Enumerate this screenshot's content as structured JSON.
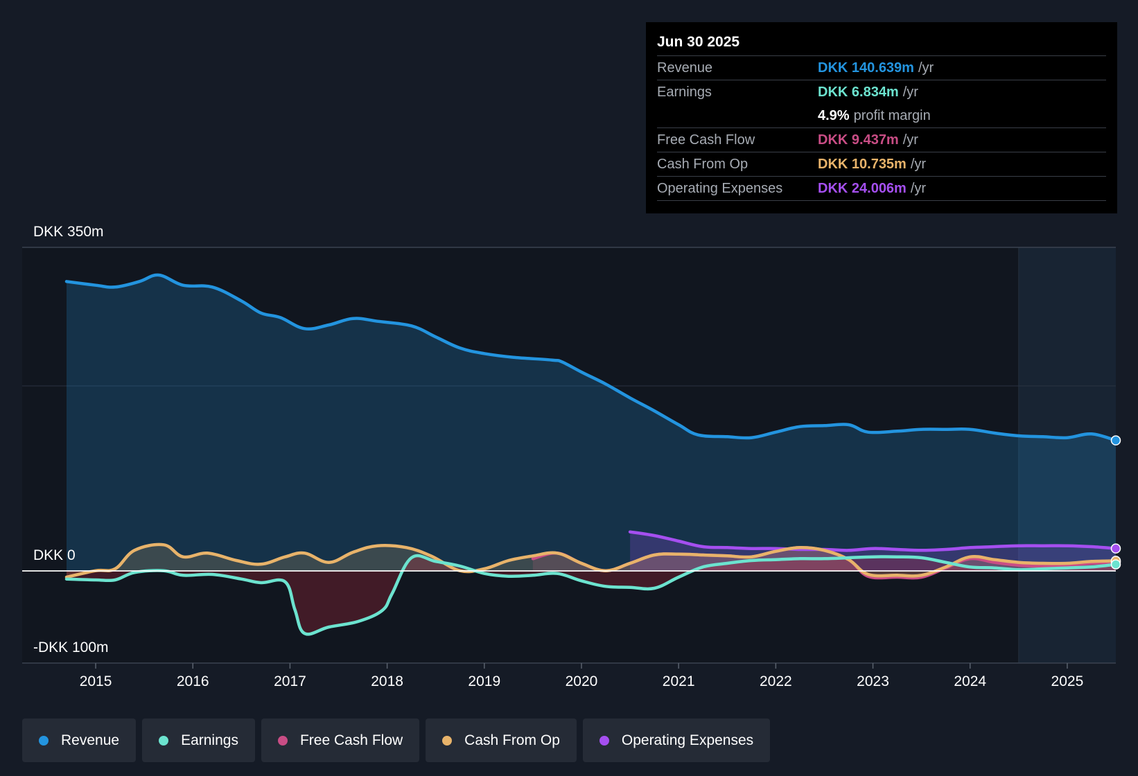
{
  "tooltip": {
    "date": "Jun 30 2025",
    "rows": [
      {
        "label": "Revenue",
        "value": "DKK 140.639m",
        "unit": "/yr",
        "color": "#2394df"
      },
      {
        "label": "Earnings",
        "value": "DKK 6.834m",
        "unit": "/yr",
        "color": "#6ce3cf"
      },
      {
        "label": "",
        "value": "4.9%",
        "unit": "profit margin",
        "color": "#ffffff"
      },
      {
        "label": "Free Cash Flow",
        "value": "DKK 9.437m",
        "unit": "/yr",
        "color": "#c94d85"
      },
      {
        "label": "Cash From Op",
        "value": "DKK 10.735m",
        "unit": "/yr",
        "color": "#e8b36a"
      },
      {
        "label": "Operating Expenses",
        "value": "DKK 24.006m",
        "unit": "/yr",
        "color": "#a54ff0"
      }
    ]
  },
  "legend": [
    {
      "label": "Revenue",
      "color": "#2394df"
    },
    {
      "label": "Earnings",
      "color": "#6ce3cf"
    },
    {
      "label": "Free Cash Flow",
      "color": "#c94d85"
    },
    {
      "label": "Cash From Op",
      "color": "#e8b36a"
    },
    {
      "label": "Operating Expenses",
      "color": "#a54ff0"
    }
  ],
  "chart_data": {
    "type": "area",
    "title": "",
    "xlabel": "",
    "ylabel": "",
    "y_labels": {
      "top": "DKK 350m",
      "zero": "DKK 0",
      "bottom": "-DKK 100m"
    },
    "ylim": [
      -100,
      350
    ],
    "xlim": [
      2014.7,
      2025.5
    ],
    "forecast_start": 2024.5,
    "x_ticks": [
      2015,
      2016,
      2017,
      2018,
      2019,
      2020,
      2021,
      2022,
      2023,
      2024,
      2025
    ],
    "series": [
      {
        "name": "Revenue",
        "color": "#2394df",
        "points": [
          [
            2014.7,
            313
          ],
          [
            2015.0,
            309
          ],
          [
            2015.2,
            307
          ],
          [
            2015.45,
            313
          ],
          [
            2015.65,
            320
          ],
          [
            2015.9,
            309
          ],
          [
            2016.2,
            307
          ],
          [
            2016.5,
            292
          ],
          [
            2016.7,
            279
          ],
          [
            2016.9,
            274
          ],
          [
            2017.15,
            262
          ],
          [
            2017.4,
            266
          ],
          [
            2017.65,
            273
          ],
          [
            2017.9,
            270
          ],
          [
            2018.25,
            265
          ],
          [
            2018.5,
            253
          ],
          [
            2018.75,
            241
          ],
          [
            2019.0,
            235
          ],
          [
            2019.3,
            231
          ],
          [
            2019.7,
            228
          ],
          [
            2019.8,
            226
          ],
          [
            2020.0,
            215
          ],
          [
            2020.25,
            202
          ],
          [
            2020.5,
            187
          ],
          [
            2020.75,
            173
          ],
          [
            2021.0,
            158
          ],
          [
            2021.2,
            147
          ],
          [
            2021.5,
            145
          ],
          [
            2021.75,
            144
          ],
          [
            2022.0,
            150
          ],
          [
            2022.25,
            156
          ],
          [
            2022.5,
            157
          ],
          [
            2022.75,
            158
          ],
          [
            2022.95,
            150
          ],
          [
            2023.25,
            151
          ],
          [
            2023.5,
            153
          ],
          [
            2023.75,
            153
          ],
          [
            2024.0,
            153
          ],
          [
            2024.25,
            149
          ],
          [
            2024.5,
            146
          ],
          [
            2024.75,
            145
          ],
          [
            2025.0,
            144
          ],
          [
            2025.25,
            148
          ],
          [
            2025.5,
            141
          ]
        ]
      },
      {
        "name": "Earnings",
        "color": "#6ce3cf",
        "points": [
          [
            2014.7,
            -9
          ],
          [
            2015.0,
            -10
          ],
          [
            2015.2,
            -10
          ],
          [
            2015.4,
            -2
          ],
          [
            2015.7,
            0
          ],
          [
            2015.9,
            -5
          ],
          [
            2016.2,
            -4
          ],
          [
            2016.5,
            -9
          ],
          [
            2016.7,
            -13
          ],
          [
            2016.95,
            -12
          ],
          [
            2017.05,
            -42
          ],
          [
            2017.15,
            -68
          ],
          [
            2017.4,
            -61
          ],
          [
            2017.7,
            -55
          ],
          [
            2017.95,
            -43
          ],
          [
            2018.05,
            -25
          ],
          [
            2018.25,
            14
          ],
          [
            2018.5,
            10
          ],
          [
            2018.75,
            5
          ],
          [
            2019.0,
            -3
          ],
          [
            2019.25,
            -6
          ],
          [
            2019.5,
            -5
          ],
          [
            2019.75,
            -3
          ],
          [
            2020.0,
            -11
          ],
          [
            2020.25,
            -17
          ],
          [
            2020.5,
            -18
          ],
          [
            2020.75,
            -19
          ],
          [
            2021.0,
            -7
          ],
          [
            2021.25,
            4
          ],
          [
            2021.5,
            8
          ],
          [
            2021.75,
            11
          ],
          [
            2022.0,
            12
          ],
          [
            2022.25,
            13
          ],
          [
            2022.5,
            13
          ],
          [
            2022.75,
            14
          ],
          [
            2023.0,
            15
          ],
          [
            2023.25,
            15
          ],
          [
            2023.5,
            14
          ],
          [
            2023.75,
            9
          ],
          [
            2024.0,
            4
          ],
          [
            2024.25,
            3
          ],
          [
            2024.5,
            1
          ],
          [
            2024.75,
            2
          ],
          [
            2025.0,
            3
          ],
          [
            2025.25,
            4
          ],
          [
            2025.5,
            6.8
          ]
        ]
      },
      {
        "name": "Free Cash Flow",
        "color": "#c94d85",
        "points": [
          [
            2019.5,
            13
          ],
          [
            2019.75,
            19
          ],
          [
            2020.0,
            8
          ],
          [
            2020.25,
            0
          ],
          [
            2020.5,
            8
          ],
          [
            2020.75,
            17
          ],
          [
            2021.0,
            18
          ],
          [
            2021.25,
            17
          ],
          [
            2021.5,
            16
          ],
          [
            2021.75,
            15
          ],
          [
            2022.0,
            21
          ],
          [
            2022.25,
            25
          ],
          [
            2022.5,
            22
          ],
          [
            2022.75,
            12
          ],
          [
            2022.95,
            -6
          ],
          [
            2023.25,
            -7
          ],
          [
            2023.5,
            -7
          ],
          [
            2023.75,
            3
          ],
          [
            2024.0,
            13
          ],
          [
            2024.25,
            9
          ],
          [
            2024.5,
            6
          ],
          [
            2024.75,
            5
          ],
          [
            2025.0,
            6
          ],
          [
            2025.25,
            8
          ],
          [
            2025.5,
            9.4
          ]
        ]
      },
      {
        "name": "Cash From Op",
        "color": "#e8b36a",
        "points": [
          [
            2014.7,
            -7
          ],
          [
            2015.0,
            0
          ],
          [
            2015.2,
            2
          ],
          [
            2015.4,
            22
          ],
          [
            2015.7,
            28
          ],
          [
            2015.9,
            15
          ],
          [
            2016.15,
            19
          ],
          [
            2016.45,
            11
          ],
          [
            2016.7,
            7
          ],
          [
            2016.95,
            15
          ],
          [
            2017.15,
            19
          ],
          [
            2017.4,
            9
          ],
          [
            2017.65,
            20
          ],
          [
            2017.9,
            27
          ],
          [
            2018.2,
            25
          ],
          [
            2018.45,
            16
          ],
          [
            2018.75,
            0
          ],
          [
            2019.0,
            2
          ],
          [
            2019.25,
            11
          ],
          [
            2019.5,
            16
          ],
          [
            2019.75,
            19
          ],
          [
            2020.0,
            8
          ],
          [
            2020.25,
            0
          ],
          [
            2020.5,
            8
          ],
          [
            2020.75,
            17
          ],
          [
            2021.0,
            18
          ],
          [
            2021.25,
            17
          ],
          [
            2021.5,
            16
          ],
          [
            2021.75,
            15
          ],
          [
            2022.0,
            21
          ],
          [
            2022.25,
            25
          ],
          [
            2022.5,
            22
          ],
          [
            2022.75,
            12
          ],
          [
            2022.95,
            -4
          ],
          [
            2023.25,
            -5
          ],
          [
            2023.5,
            -5
          ],
          [
            2023.75,
            4
          ],
          [
            2024.0,
            15
          ],
          [
            2024.25,
            12
          ],
          [
            2024.5,
            9
          ],
          [
            2024.75,
            8
          ],
          [
            2025.0,
            8
          ],
          [
            2025.25,
            10
          ],
          [
            2025.5,
            10.7
          ]
        ]
      },
      {
        "name": "Operating Expenses",
        "color": "#a54ff0",
        "points": [
          [
            2020.5,
            42
          ],
          [
            2020.75,
            38
          ],
          [
            2021.0,
            32
          ],
          [
            2021.25,
            26
          ],
          [
            2021.5,
            25
          ],
          [
            2021.75,
            24
          ],
          [
            2022.0,
            24
          ],
          [
            2022.25,
            23
          ],
          [
            2022.5,
            23
          ],
          [
            2022.75,
            22
          ],
          [
            2023.0,
            24
          ],
          [
            2023.25,
            23
          ],
          [
            2023.5,
            22
          ],
          [
            2023.75,
            23
          ],
          [
            2024.0,
            25
          ],
          [
            2024.25,
            26
          ],
          [
            2024.5,
            27
          ],
          [
            2024.75,
            27
          ],
          [
            2025.0,
            27
          ],
          [
            2025.25,
            26
          ],
          [
            2025.5,
            24
          ]
        ]
      }
    ]
  }
}
